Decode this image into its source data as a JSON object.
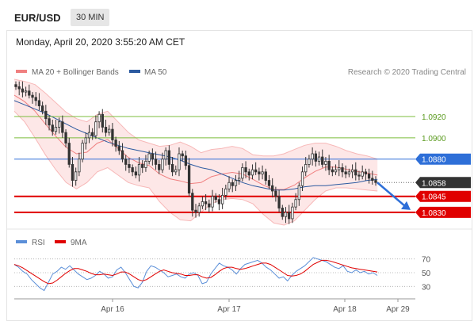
{
  "header": {
    "symbol": "EUR/USD",
    "timeframe": "30 MIN"
  },
  "datetime": "Monday, April 20, 2020 3:55:20 AM CET",
  "attribution": "Research © 2020 Trading Central",
  "colors": {
    "bollinger": "#f08080",
    "ma50": "#2c5aa0",
    "resistance": "#7cbd3c",
    "pivot": "#2e6fd8",
    "support": "#e00000",
    "last_price": "#333333",
    "rsi": "#5b8fd8",
    "rsi_ma": "#e00000",
    "arrow": "#2e6fd8"
  },
  "chart_data": [
    {
      "type": "candlestick",
      "legend": [
        {
          "name": "MA 20 + Bollinger Bands",
          "color": "#f08080"
        },
        {
          "name": "MA 50",
          "color": "#2c5aa0"
        }
      ],
      "x_ticks": [
        "Apr 16",
        "Apr 17",
        "Apr 18",
        "Apr 29"
      ],
      "ylim": [
        1.0815,
        1.0955
      ],
      "levels": [
        {
          "label": "1.0920",
          "value": 1.092,
          "kind": "resistance"
        },
        {
          "label": "1.0900",
          "value": 1.09,
          "kind": "resistance"
        },
        {
          "label": "1.0880",
          "value": 1.088,
          "kind": "pivot"
        },
        {
          "label": "1.0858",
          "value": 1.0858,
          "kind": "last"
        },
        {
          "label": "1.0845",
          "value": 1.0845,
          "kind": "support"
        },
        {
          "label": "1.0830",
          "value": 1.083,
          "kind": "support"
        }
      ],
      "close": [
        1.0948,
        1.0946,
        1.0943,
        1.0944,
        1.094,
        1.0938,
        1.0935,
        1.093,
        1.0925,
        1.0918,
        1.0912,
        1.0906,
        1.091,
        1.0915,
        1.0905,
        1.0895,
        1.0875,
        1.086,
        1.0868,
        1.088,
        1.0895,
        1.09,
        1.0905,
        1.0902,
        1.0915,
        1.0922,
        1.091,
        1.0905,
        1.0908,
        1.0898,
        1.0892,
        1.0888,
        1.088,
        1.0875,
        1.0872,
        1.0868,
        1.0865,
        1.0875,
        1.0872,
        1.0878,
        1.0885,
        1.088,
        1.0875,
        1.087,
        1.088,
        1.0888,
        1.0875,
        1.0868,
        1.087,
        1.0885,
        1.0883,
        1.0874,
        1.0848,
        1.0832,
        1.083,
        1.0836,
        1.084,
        1.0838,
        1.0835,
        1.0845,
        1.0842,
        1.0838,
        1.0846,
        1.0852,
        1.0858,
        1.0855,
        1.086,
        1.0862,
        1.0872,
        1.0868,
        1.0865,
        1.087,
        1.0868,
        1.0866,
        1.0868,
        1.086,
        1.0855,
        1.085,
        1.0845,
        1.0834,
        1.0826,
        1.083,
        1.0824,
        1.0835,
        1.0842,
        1.0855,
        1.0868,
        1.0875,
        1.088,
        1.0885,
        1.0878,
        1.0882,
        1.0875,
        1.0878,
        1.087,
        1.0868,
        1.087,
        1.0872,
        1.0868,
        1.0866,
        1.0868,
        1.087,
        1.0865,
        1.0864,
        1.0868,
        1.0866,
        1.0862,
        1.086,
        1.0858
      ],
      "ma50": [
        1.0935,
        1.0931,
        1.0927,
        1.0923,
        1.0918,
        1.0913,
        1.0908,
        1.0904,
        1.09,
        1.0896,
        1.0893,
        1.089,
        1.0888,
        1.0886,
        1.0884,
        1.0882,
        1.0879,
        1.0875,
        1.0872,
        1.087,
        1.0866,
        1.0862,
        1.0858,
        1.0855,
        1.0853,
        1.0851,
        1.0851,
        1.0852,
        1.0854,
        1.0855,
        1.0855,
        1.0856,
        1.0857,
        1.0858,
        1.086,
        1.0861
      ],
      "bb_upper": [
        1.0955,
        1.0953,
        1.095,
        1.0942,
        1.0933,
        1.0924,
        1.0918,
        1.0915,
        1.0922,
        1.0925,
        1.0915,
        1.0905,
        1.0898,
        1.0895,
        1.0892,
        1.0893,
        1.0896,
        1.0892,
        1.0886,
        1.0889,
        1.089,
        1.0892,
        1.089,
        1.0884,
        1.0883,
        1.0883,
        1.0885,
        1.0889,
        1.0893,
        1.0895,
        1.0895,
        1.0892,
        1.0888,
        1.0885,
        1.0883,
        1.088
      ],
      "bb_lower": [
        1.0925,
        1.0915,
        1.09,
        1.0884,
        1.087,
        1.0858,
        1.0852,
        1.0858,
        1.0868,
        1.0872,
        1.0865,
        1.0858,
        1.0855,
        1.0853,
        1.084,
        1.083,
        1.0823,
        1.0822,
        1.083,
        1.0838,
        1.0842,
        1.0843,
        1.0842,
        1.0838,
        1.0828,
        1.082,
        1.0818,
        1.0822,
        1.0832,
        1.0842,
        1.085,
        1.0853,
        1.0853,
        1.0852,
        1.0851,
        1.085
      ],
      "projection": {
        "from": 1.0858,
        "to": 1.083
      }
    },
    {
      "type": "line",
      "legend": [
        {
          "name": "RSI",
          "color": "#5b8fd8"
        },
        {
          "name": "9MA",
          "color": "#e00000"
        }
      ],
      "y_ticks": [
        "70",
        "50",
        "30"
      ],
      "ylim": [
        20,
        80
      ],
      "series": [
        {
          "name": "RSI",
          "values": [
            62,
            58,
            52,
            48,
            40,
            34,
            28,
            24,
            36,
            48,
            52,
            58,
            55,
            60,
            54,
            48,
            44,
            40,
            42,
            46,
            52,
            48,
            42,
            44,
            54,
            58,
            50,
            40,
            30,
            28,
            36,
            52,
            60,
            58,
            54,
            50,
            44,
            46,
            48,
            44,
            42,
            48,
            50,
            46,
            34,
            36,
            48,
            56,
            64,
            60,
            58,
            54,
            48,
            56,
            62,
            64,
            66,
            68,
            64,
            58,
            54,
            48,
            42,
            44,
            38,
            46,
            52,
            56,
            60,
            66,
            72,
            70,
            68,
            66,
            62,
            58,
            56,
            60,
            52,
            50,
            54,
            50,
            52,
            48,
            50,
            46
          ]
        },
        {
          "name": "9MA",
          "values": [
            62,
            60,
            57,
            53,
            49,
            45,
            41,
            37,
            34,
            35,
            39,
            44,
            49,
            53,
            56,
            56,
            54,
            52,
            49,
            47,
            47,
            48,
            47,
            46,
            48,
            51,
            51,
            48,
            44,
            40,
            38,
            40,
            44,
            48,
            52,
            54,
            52,
            50,
            49,
            48,
            46,
            46,
            47,
            47,
            44,
            42,
            43,
            47,
            52,
            56,
            58,
            58,
            56,
            55,
            56,
            58,
            60,
            62,
            64,
            64,
            62,
            58,
            54,
            50,
            46,
            45,
            46,
            48,
            52,
            57,
            62,
            65,
            68,
            68,
            67,
            65,
            63,
            61,
            59,
            57,
            56,
            55,
            54,
            53,
            52,
            51
          ]
        }
      ]
    }
  ]
}
